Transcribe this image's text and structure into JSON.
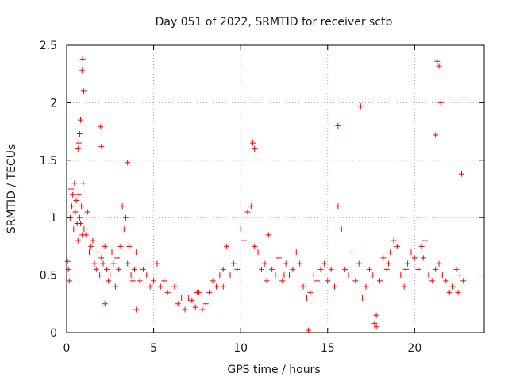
{
  "chart_data": {
    "type": "scatter",
    "title": "Day 051 of 2022, SRMTID for receiver sctb",
    "xlabel": "GPS time / hours",
    "ylabel": "SRMTID / TECUs",
    "xlim": [
      0,
      24
    ],
    "ylim": [
      0,
      2.5
    ],
    "xticks": [
      0,
      5,
      10,
      15,
      20
    ],
    "xtick_labels": [
      "0",
      "5",
      "10",
      "15",
      "20"
    ],
    "yticks": [
      0,
      0.5,
      1,
      1.5,
      2,
      2.5
    ],
    "ytick_labels": [
      "0",
      "0.5",
      "1",
      "1.5",
      "2",
      "2.5"
    ],
    "grid": true,
    "marker": "plus",
    "color": "#ff0000",
    "series": [
      {
        "name": "SRMTID",
        "x": [
          0.05,
          0.1,
          0.15,
          0.2,
          0.25,
          0.3,
          0.35,
          0.4,
          0.45,
          0.5,
          0.55,
          0.6,
          0.65,
          0.7,
          0.75,
          0.8,
          0.85,
          0.9,
          0.95,
          1.0,
          1.1,
          1.2,
          1.3,
          1.4,
          1.5,
          1.6,
          1.7,
          1.8,
          1.9,
          2.0,
          2.1,
          2.2,
          2.3,
          2.4,
          2.5,
          2.6,
          2.7,
          2.8,
          2.9,
          3.0,
          3.1,
          3.2,
          3.3,
          3.4,
          3.5,
          3.6,
          3.7,
          3.8,
          3.9,
          4.0,
          4.2,
          4.4,
          4.6,
          4.8,
          5.0,
          5.2,
          5.4,
          5.6,
          5.8,
          6.0,
          6.2,
          6.4,
          6.6,
          6.8,
          7.0,
          7.2,
          7.4,
          7.6,
          7.8,
          8.0,
          8.2,
          8.4,
          8.6,
          8.8,
          9.0,
          9.2,
          9.4,
          9.6,
          9.8,
          10.0,
          10.2,
          10.4,
          10.6,
          10.8,
          11.0,
          11.2,
          11.4,
          11.6,
          11.8,
          12.0,
          12.2,
          12.4,
          12.6,
          12.8,
          13.0,
          13.2,
          13.4,
          13.6,
          13.8,
          14.0,
          14.2,
          14.4,
          14.6,
          14.8,
          15.0,
          15.2,
          15.4,
          15.6,
          15.8,
          16.0,
          16.2,
          16.4,
          16.6,
          16.8,
          17.0,
          17.2,
          17.4,
          17.6,
          17.8,
          18.0,
          18.2,
          18.4,
          18.6,
          18.8,
          19.0,
          19.2,
          19.4,
          19.6,
          19.8,
          20.0,
          20.2,
          20.4,
          20.6,
          20.8,
          21.0,
          21.2,
          21.4,
          21.6,
          21.8,
          22.0,
          22.2,
          22.4,
          22.6,
          22.8,
          0.92,
          0.88,
          0.8,
          0.75,
          0.7,
          0.65,
          0.98,
          10.7,
          10.8,
          15.6,
          16.9,
          21.3,
          21.4,
          21.5,
          21.2,
          3.5,
          1.95,
          2.0,
          17.7,
          17.8,
          13.9,
          22.7,
          2.2,
          4.0,
          7.5,
          9.0,
          11.5,
          12.5,
          18.5,
          19.5,
          20.5,
          22.5
        ],
        "y": [
          0.62,
          0.55,
          0.45,
          1.0,
          1.25,
          1.1,
          1.2,
          0.9,
          1.3,
          1.05,
          1.15,
          0.95,
          0.8,
          1.2,
          1.0,
          0.95,
          1.1,
          0.85,
          1.3,
          0.9,
          0.85,
          1.05,
          0.7,
          0.75,
          0.8,
          0.6,
          0.55,
          0.7,
          0.5,
          0.65,
          0.6,
          0.75,
          0.55,
          0.45,
          0.5,
          0.7,
          0.6,
          0.4,
          0.65,
          0.55,
          0.75,
          1.1,
          0.9,
          1.0,
          0.6,
          0.75,
          0.5,
          0.45,
          0.55,
          0.7,
          0.45,
          0.55,
          0.5,
          0.4,
          0.45,
          0.6,
          0.4,
          0.45,
          0.35,
          0.3,
          0.4,
          0.25,
          0.3,
          0.2,
          0.3,
          0.28,
          0.22,
          0.35,
          0.2,
          0.25,
          0.35,
          0.45,
          0.4,
          0.5,
          0.55,
          0.75,
          0.5,
          0.6,
          0.55,
          0.9,
          0.8,
          1.05,
          1.1,
          0.75,
          0.7,
          0.55,
          0.6,
          0.85,
          0.55,
          0.5,
          0.65,
          0.45,
          0.6,
          0.5,
          0.55,
          0.7,
          0.6,
          0.4,
          0.3,
          0.35,
          0.5,
          0.45,
          0.55,
          0.6,
          0.45,
          0.55,
          0.4,
          1.1,
          0.9,
          0.55,
          0.5,
          0.7,
          0.45,
          0.6,
          0.3,
          0.4,
          0.55,
          0.5,
          0.15,
          0.45,
          0.65,
          0.55,
          0.7,
          0.8,
          0.75,
          0.5,
          0.4,
          0.6,
          0.7,
          0.65,
          0.55,
          0.75,
          0.8,
          0.5,
          0.45,
          0.55,
          0.6,
          0.5,
          0.45,
          0.35,
          0.4,
          0.55,
          0.5,
          0.45,
          2.38,
          2.28,
          1.85,
          1.73,
          1.65,
          1.6,
          2.1,
          1.65,
          1.6,
          1.8,
          1.97,
          2.36,
          2.32,
          2.0,
          1.72,
          1.48,
          1.79,
          1.62,
          0.08,
          0.05,
          0.02,
          1.38,
          0.25,
          0.2,
          0.35,
          0.4,
          0.45,
          0.5,
          0.6,
          0.55,
          0.65,
          0.35
        ]
      }
    ]
  }
}
